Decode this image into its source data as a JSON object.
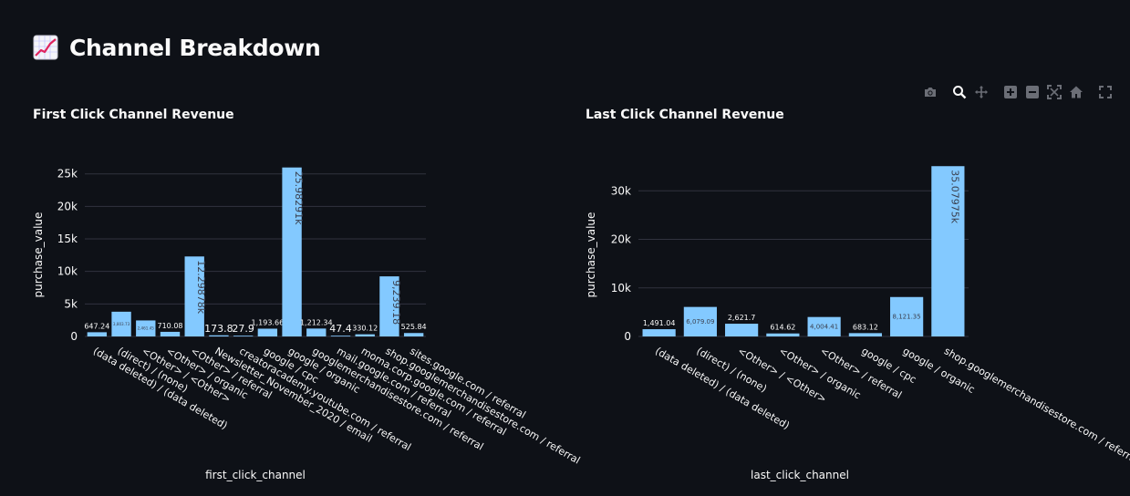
{
  "page": {
    "title": "Channel Breakdown",
    "icon": "chart-increasing-icon"
  },
  "toolbar": {
    "buttons": [
      "camera-icon",
      "zoom-icon",
      "pan-icon",
      "zoom-in-icon",
      "zoom-out-icon",
      "autoscale-icon",
      "reset-axes-icon",
      "fullscreen-icon"
    ]
  },
  "colors": {
    "background": "#0e1117",
    "bar": "#83c9ff",
    "grid": "#31333f",
    "text": "#fafafa"
  },
  "chart_data": [
    {
      "type": "bar",
      "title": "First Click Channel Revenue",
      "xlabel": "first_click_channel",
      "ylabel": "purchase_value",
      "ylim": [
        0,
        26500
      ],
      "yticks": [
        0,
        5000,
        10000,
        15000,
        20000,
        25000
      ],
      "ytick_labels": [
        "0",
        "5k",
        "10k",
        "15k",
        "20k",
        "25k"
      ],
      "grid": true,
      "categories": [
        "(data deleted) / (data deleted)",
        "(direct) / (none)",
        "<Other> / <Other>",
        "<Other> / organic",
        "<Other> / referral",
        "Newsletter_November_2020 / email",
        "creatoracademy.youtube.com / referral",
        "google / cpc",
        "google / organic",
        "googlemerchandisestore.com / referral",
        "mail.google.com / referral",
        "moma.corp.google.com / referral",
        "shop.googlemerchandisestore.com / referral",
        "sites.google.com / referral"
      ],
      "values": [
        647.24,
        3803.73,
        2461.45,
        710.08,
        12298.78,
        173.8,
        27.9,
        1193.66,
        25982.91,
        1212.34,
        47.4,
        330.12,
        9239.18,
        525.84
      ],
      "data_labels": [
        "647.24",
        "3,803.73",
        "2,461.45",
        "710.08",
        "12.29878k",
        "173.8",
        "27.9",
        "1,193.66",
        "25.98291k",
        "1,212.34",
        "47.4",
        "330.12",
        "9,239.18",
        "525.84"
      ]
    },
    {
      "type": "bar",
      "title": "Last Click Channel Revenue",
      "xlabel": "last_click_channel",
      "ylabel": "purchase_value",
      "ylim": [
        0,
        35500
      ],
      "yticks": [
        0,
        10000,
        20000,
        30000
      ],
      "ytick_labels": [
        "0",
        "10k",
        "20k",
        "30k"
      ],
      "grid": true,
      "categories": [
        "(data deleted) / (data deleted)",
        "(direct) / (none)",
        "<Other> / <Other>",
        "<Other> / organic",
        "<Other> / referral",
        "google / cpc",
        "google / organic",
        "shop.googlemerchandisestore.com / referral"
      ],
      "values": [
        1491.04,
        6079.09,
        2621.7,
        614.62,
        4004.41,
        683.12,
        8121.35,
        35079.75
      ],
      "data_labels": [
        "1,491.04",
        "6,079.09",
        "2,621.7",
        "614.62",
        "4,004.41",
        "683.12",
        "8,121.35",
        "35.07975k"
      ]
    }
  ]
}
